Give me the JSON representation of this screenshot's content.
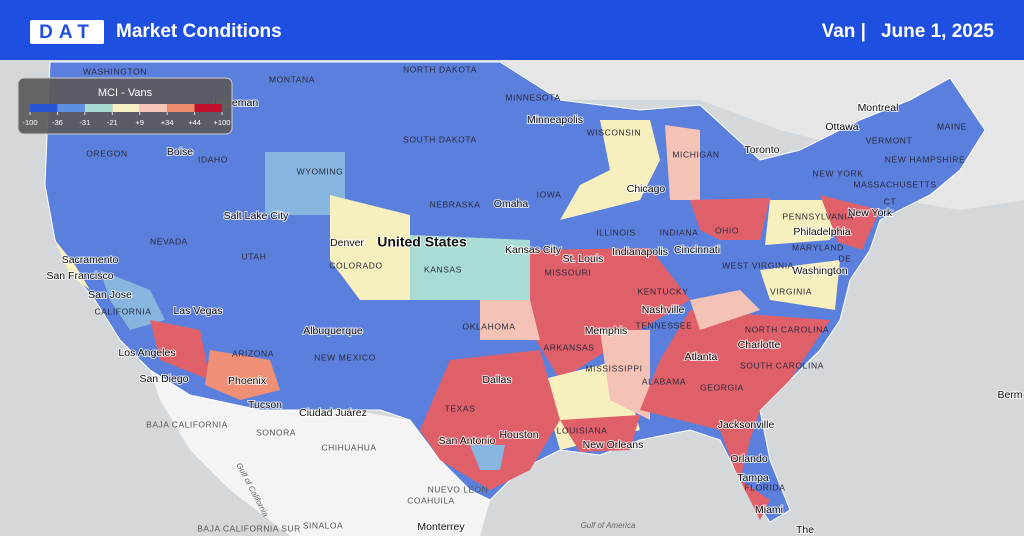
{
  "header": {
    "logo": "DAT",
    "title": "Market Conditions",
    "equipment": "Van |",
    "date": "June 1, 2025"
  },
  "legend": {
    "title": "MCI - Vans",
    "ticks": [
      {
        "value": -100,
        "label": "-100"
      },
      {
        "value": -36,
        "label": "-36"
      },
      {
        "value": -31,
        "label": "-31"
      },
      {
        "value": -21,
        "label": "-21"
      },
      {
        "value": 9,
        "label": "+9"
      },
      {
        "value": 34,
        "label": "+34"
      },
      {
        "value": 44,
        "label": "+44"
      },
      {
        "value": 100,
        "label": "+100"
      }
    ],
    "colors": [
      "#2456d6",
      "#5f8fe2",
      "#a8dcd2",
      "#f6f1c4",
      "#f8c6b9",
      "#ee8a6e",
      "#c0102c"
    ]
  },
  "map": {
    "labels": [
      "WASHINGTON",
      "MONTANA",
      "NORTH DAKOTA",
      "MINNESOTA",
      "Minneapolis",
      "Montreal",
      "Ottawa",
      "MAINE",
      "Toronto",
      "VERMONT",
      "NEW HAMPSHIRE",
      "MASSACHUSETTS",
      "NEW YORK",
      "CT",
      "New York",
      "OREGON",
      "Boise",
      "IDAHO",
      "Bozeman",
      "WYOMING",
      "SOUTH DAKOTA",
      "WISCONSIN",
      "MICHIGAN",
      "Chicago",
      "Omaha",
      "IOWA",
      "NEBRASKA",
      "Salt Lake City",
      "NEVADA",
      "UTAH",
      "Denver",
      "COLORADO",
      "United States",
      "KANSAS",
      "Kansas City",
      "ILLINOIS",
      "INDIANA",
      "OHIO",
      "Indianapolis",
      "Cincinnati",
      "St. Louis",
      "MISSOURI",
      "PENNSYLVANIA",
      "Philadelphia",
      "MARYLAND",
      "DE",
      "Washington",
      "WEST VIRGINIA",
      "VIRGINIA",
      "KENTUCKY",
      "Sacramento",
      "San Francisco",
      "San Jose",
      "CALIFORNIA",
      "Las Vegas",
      "Albuquerque",
      "OKLAHOMA",
      "Nashville",
      "TENNESSEE",
      "Memphis",
      "ARKANSAS",
      "NORTH CAROLINA",
      "Charlotte",
      "Atlanta",
      "SOUTH CAROLINA",
      "Los Angeles",
      "ARIZONA",
      "NEW MEXICO",
      "MISSISSIPPI",
      "ALABAMA",
      "GEORGIA",
      "San Diego",
      "Phoenix",
      "Dallas",
      "TEXAS",
      "Tucson",
      "Ciudad Juárez",
      "LOUISIANA",
      "Houston",
      "San Antonio",
      "New Orleans",
      "Jacksonville",
      "BAJA CALIFORNIA",
      "SONORA",
      "CHIHUAHUA",
      "COAHUILA",
      "NUEVO LEON",
      "Orlando",
      "Tampa",
      "FLORIDA",
      "Miami",
      "Monterrey",
      "SINALOA",
      "BAJA CALIFORNIA SUR",
      "Gulf of California",
      "Gulf of America",
      "The",
      "Berm"
    ]
  }
}
